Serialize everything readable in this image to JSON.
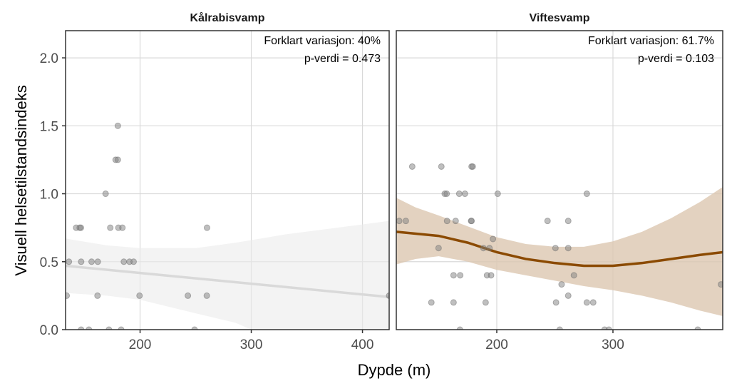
{
  "chart_data": {
    "type": "scatter",
    "xlabel": "Dypde (m)",
    "ylabel": "Visuell helsetilstandsindeks",
    "grid": true,
    "panels": [
      {
        "title": "Kålrabisvamp",
        "annotation": [
          "Forklart variasjon: 40%",
          "p-verdi = 0.473"
        ],
        "xlim": [
          133,
          424
        ],
        "ylim": [
          0,
          2.2
        ],
        "xticks": [
          200,
          300,
          400
        ],
        "yticks": [
          0.0,
          0.5,
          1.0,
          1.5,
          2.0
        ],
        "fit_color": "#d9d9d9",
        "band_color": "#ebebeb",
        "points": [
          [
            180,
            1.5
          ],
          [
            178,
            1.25
          ],
          [
            180,
            1.25
          ],
          [
            169,
            1.0
          ],
          [
            142.5,
            0.75
          ],
          [
            145.7,
            0.75
          ],
          [
            146.8,
            0.75
          ],
          [
            173.2,
            0.75
          ],
          [
            180.5,
            0.75
          ],
          [
            184.1,
            0.75
          ],
          [
            260.2,
            0.75
          ],
          [
            136,
            0.5
          ],
          [
            147,
            0.5
          ],
          [
            156.4,
            0.5
          ],
          [
            162,
            0.5
          ],
          [
            185.4,
            0.5
          ],
          [
            190.5,
            0.5
          ],
          [
            194.2,
            0.5
          ],
          [
            134,
            0.25
          ],
          [
            161.7,
            0.25
          ],
          [
            199.5,
            0.25
          ],
          [
            243,
            0.25
          ],
          [
            260,
            0.25
          ],
          [
            424,
            0.25
          ],
          [
            147,
            0
          ],
          [
            154,
            0
          ],
          [
            172,
            0
          ],
          [
            183,
            0
          ],
          [
            249,
            0
          ]
        ],
        "fit": [
          [
            133,
            0.47
          ],
          [
            424,
            0.24
          ]
        ],
        "band_upper": [
          [
            133,
            0.67
          ],
          [
            170,
            0.62
          ],
          [
            200,
            0.6
          ],
          [
            250,
            0.6
          ],
          [
            286,
            0.64
          ],
          [
            330,
            0.7
          ],
          [
            424,
            0.8
          ]
        ],
        "band_lower": [
          [
            133,
            0.27
          ],
          [
            170,
            0.25
          ],
          [
            200,
            0.22
          ],
          [
            250,
            0.12
          ],
          [
            286,
            0.05
          ],
          [
            300,
            0.0
          ],
          [
            424,
            0.0
          ]
        ]
      },
      {
        "title": "Viftesvamp",
        "annotation": [
          "Forklart variasjon: 61.7%",
          "p-verdi = 0.103"
        ],
        "xlim": [
          113.5,
          394.5
        ],
        "ylim": [
          0,
          2.2
        ],
        "xticks": [
          200,
          300
        ],
        "yticks": [
          0.0,
          0.5,
          1.0,
          1.5,
          2.0
        ],
        "fit_color": "#8b4a00",
        "band_color": "#dcc7b0",
        "points": [
          [
            127.2,
            1.2
          ],
          [
            152.3,
            1.2
          ],
          [
            178.3,
            1.2
          ],
          [
            179.3,
            1.2
          ],
          [
            155.2,
            1.0
          ],
          [
            156.9,
            1.0
          ],
          [
            167.7,
            1.0
          ],
          [
            172.6,
            1.0
          ],
          [
            200.8,
            1.0
          ],
          [
            277.5,
            1.0
          ],
          [
            116,
            0.8
          ],
          [
            121.7,
            0.8
          ],
          [
            157.2,
            0.8
          ],
          [
            164.6,
            0.8
          ],
          [
            177.9,
            0.8
          ],
          [
            178.3,
            0.8
          ],
          [
            243.7,
            0.8
          ],
          [
            261.5,
            0.8
          ],
          [
            196.7,
            0.667
          ],
          [
            149.9,
            0.6
          ],
          [
            188.5,
            0.6
          ],
          [
            193.7,
            0.6
          ],
          [
            250.5,
            0.6
          ],
          [
            261.5,
            0.6
          ],
          [
            162.8,
            0.4
          ],
          [
            168.5,
            0.4
          ],
          [
            191.6,
            0.4
          ],
          [
            195.1,
            0.4
          ],
          [
            266.4,
            0.4
          ],
          [
            255.8,
            0.333
          ],
          [
            393,
            0.333
          ],
          [
            261.5,
            0.25
          ],
          [
            143.7,
            0.2
          ],
          [
            162.8,
            0.2
          ],
          [
            190.4,
            0.2
          ],
          [
            251,
            0.2
          ],
          [
            277.5,
            0.2
          ],
          [
            283,
            0.2
          ],
          [
            168.3,
            0
          ],
          [
            254.2,
            0
          ],
          [
            292.8,
            0
          ],
          [
            296.5,
            0
          ],
          [
            373,
            0
          ]
        ],
        "fit": [
          [
            113.5,
            0.72
          ],
          [
            150,
            0.69
          ],
          [
            175,
            0.64
          ],
          [
            200,
            0.57
          ],
          [
            225,
            0.52
          ],
          [
            250,
            0.49
          ],
          [
            275,
            0.47
          ],
          [
            300,
            0.47
          ],
          [
            325,
            0.49
          ],
          [
            350,
            0.52
          ],
          [
            375,
            0.55
          ],
          [
            394.5,
            0.57
          ]
        ],
        "band_upper": [
          [
            113.5,
            0.97
          ],
          [
            130,
            0.9
          ],
          [
            150,
            0.84
          ],
          [
            175,
            0.76
          ],
          [
            200,
            0.68
          ],
          [
            225,
            0.63
          ],
          [
            250,
            0.61
          ],
          [
            275,
            0.61
          ],
          [
            300,
            0.65
          ],
          [
            325,
            0.72
          ],
          [
            350,
            0.82
          ],
          [
            375,
            0.94
          ],
          [
            394.5,
            1.05
          ]
        ],
        "band_lower": [
          [
            113.5,
            0.48
          ],
          [
            130,
            0.52
          ],
          [
            150,
            0.54
          ],
          [
            175,
            0.5
          ],
          [
            200,
            0.44
          ],
          [
            225,
            0.4
          ],
          [
            250,
            0.36
          ],
          [
            275,
            0.32
          ],
          [
            300,
            0.29
          ],
          [
            325,
            0.25
          ],
          [
            350,
            0.2
          ],
          [
            375,
            0.14
          ],
          [
            394.5,
            0.1
          ]
        ]
      }
    ]
  }
}
